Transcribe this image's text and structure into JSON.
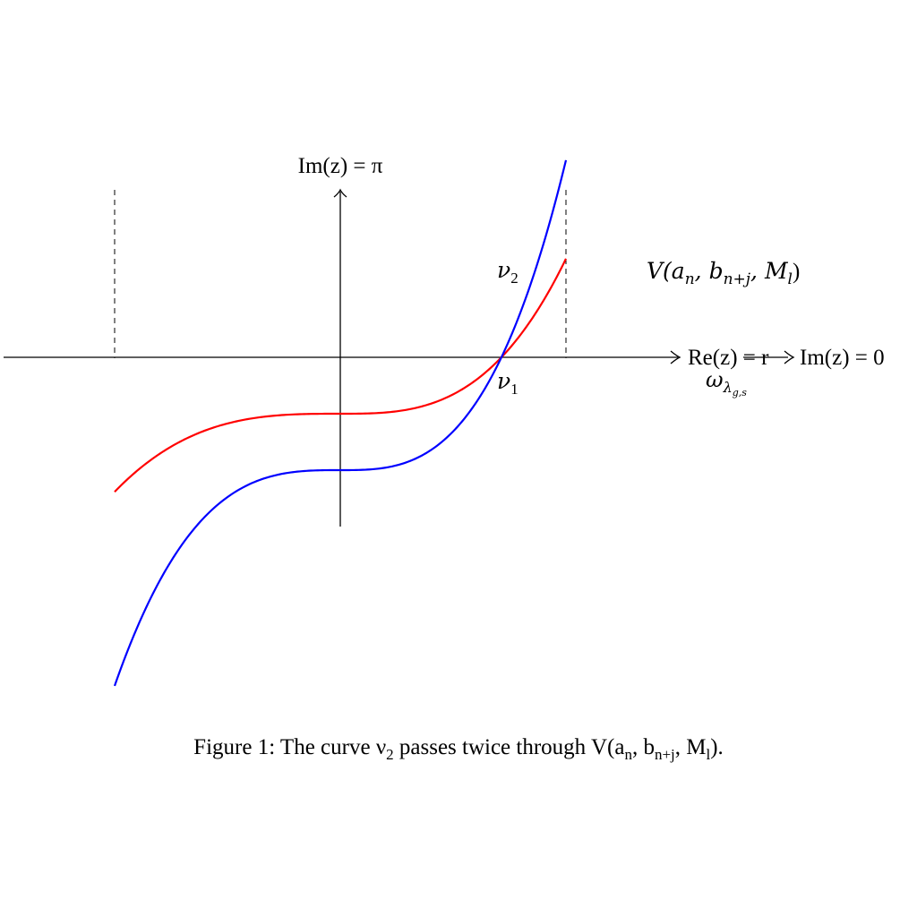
{
  "figure": {
    "top_axis_label": "Im(z) = π",
    "right_axis_label_1": "Re(z) = r",
    "right_axis_label_2": "Im(z) = 0",
    "omega_label": "ω",
    "omega_subscript": "λ",
    "omega_subsubscript": "g,s",
    "nu1_label": "ν",
    "nu1_subscript": "1",
    "nu2_label": "ν",
    "nu2_subscript": "2",
    "v_label": "V(a",
    "v_sub_n": "n",
    "v_mid": ", b",
    "v_sub_nj": "n+j",
    "v_mid2": ", M",
    "v_sub_l": "l",
    "v_close": ")",
    "caption_prefix": "Figure 1: The curve ν",
    "caption_sub": "2",
    "caption_middle": " passes twice through V(a",
    "caption_sub_n": "n",
    "caption_mid2": ", b",
    "caption_sub_nj": "n+j",
    "caption_mid3": ", M",
    "caption_sub_l": "l",
    "caption_end": ")."
  },
  "colors": {
    "red_curve": "#ff0000",
    "blue_curve": "#0000ff",
    "axes": "#000000"
  }
}
